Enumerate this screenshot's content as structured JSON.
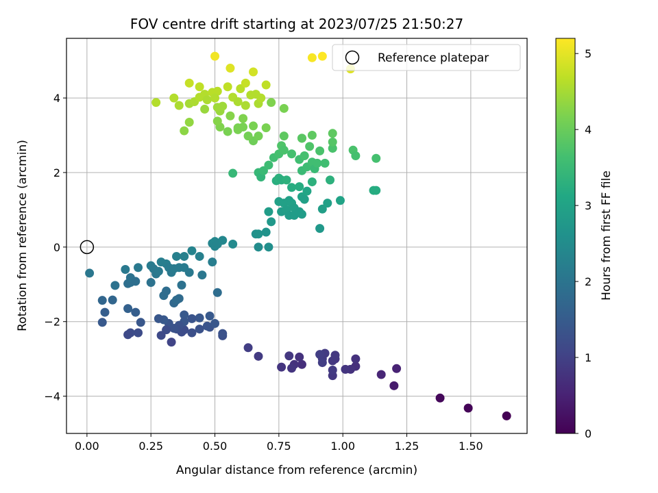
{
  "chart_data": {
    "type": "scatter",
    "title": "FOV centre drift starting at 2023/07/25 21:50:27",
    "xlabel": "Angular distance from reference (arcmin)",
    "ylabel": "Rotation from reference (arcmin)",
    "xlim": [
      -0.08,
      1.72
    ],
    "ylim": [
      -5.0,
      5.6
    ],
    "x_ticks": [
      0.0,
      0.25,
      0.5,
      0.75,
      1.0,
      1.25,
      1.5
    ],
    "x_tick_labels": [
      "0.00",
      "0.25",
      "0.50",
      "0.75",
      "1.00",
      "1.25",
      "1.50"
    ],
    "y_ticks": [
      -4,
      -2,
      0,
      2,
      4
    ],
    "y_tick_labels": [
      "−4",
      "−2",
      "0",
      "2",
      "4"
    ],
    "grid": true,
    "legend": {
      "placement": "upper-right",
      "label": "Reference platepar"
    },
    "reference_point": {
      "x": 0.0,
      "y": 0.0
    },
    "colorbar": {
      "label": "Hours from first FF file",
      "min": 0,
      "max": 5.2,
      "ticks": [
        0,
        1,
        2,
        3,
        4,
        5
      ],
      "tick_labels": [
        "0",
        "1",
        "2",
        "3",
        "4",
        "5"
      ],
      "colormap": "viridis"
    },
    "points": [
      {
        "x": 1.64,
        "y": -4.53,
        "t": 0.0
      },
      {
        "x": 1.49,
        "y": -4.32,
        "t": 0.05
      },
      {
        "x": 1.38,
        "y": -4.05,
        "t": 0.1
      },
      {
        "x": 1.2,
        "y": -3.72,
        "t": 0.4
      },
      {
        "x": 1.21,
        "y": -3.26,
        "t": 0.5
      },
      {
        "x": 1.15,
        "y": -3.42,
        "t": 0.55
      },
      {
        "x": 1.05,
        "y": -3.2,
        "t": 0.7
      },
      {
        "x": 1.05,
        "y": -3.0,
        "t": 0.75
      },
      {
        "x": 1.03,
        "y": -3.28,
        "t": 0.75
      },
      {
        "x": 1.01,
        "y": -3.28,
        "t": 0.8
      },
      {
        "x": 0.97,
        "y": -3.0,
        "t": 0.8
      },
      {
        "x": 0.96,
        "y": -3.45,
        "t": 0.85
      },
      {
        "x": 0.96,
        "y": -3.05,
        "t": 0.85
      },
      {
        "x": 0.97,
        "y": -2.9,
        "t": 0.85
      },
      {
        "x": 0.96,
        "y": -3.3,
        "t": 0.9
      },
      {
        "x": 0.93,
        "y": -2.85,
        "t": 0.9
      },
      {
        "x": 0.92,
        "y": -3.0,
        "t": 0.9
      },
      {
        "x": 0.91,
        "y": -2.88,
        "t": 0.95
      },
      {
        "x": 0.92,
        "y": -3.1,
        "t": 0.95
      },
      {
        "x": 0.84,
        "y": -3.15,
        "t": 0.7
      },
      {
        "x": 0.83,
        "y": -2.95,
        "t": 0.75
      },
      {
        "x": 0.81,
        "y": -3.15,
        "t": 0.75
      },
      {
        "x": 0.8,
        "y": -3.25,
        "t": 0.8
      },
      {
        "x": 0.79,
        "y": -2.92,
        "t": 0.85
      },
      {
        "x": 0.76,
        "y": -3.22,
        "t": 0.8
      },
      {
        "x": 0.67,
        "y": -2.93,
        "t": 0.9
      },
      {
        "x": 0.63,
        "y": -2.7,
        "t": 0.95
      },
      {
        "x": 0.53,
        "y": -2.38,
        "t": 1.25
      },
      {
        "x": 0.53,
        "y": -2.32,
        "t": 1.3
      },
      {
        "x": 0.48,
        "y": -1.85,
        "t": 1.45
      },
      {
        "x": 0.48,
        "y": -2.15,
        "t": 1.3
      },
      {
        "x": 0.47,
        "y": -2.12,
        "t": 1.35
      },
      {
        "x": 0.5,
        "y": -2.05,
        "t": 1.4
      },
      {
        "x": 0.44,
        "y": -2.2,
        "t": 1.3
      },
      {
        "x": 0.44,
        "y": -1.9,
        "t": 1.4
      },
      {
        "x": 0.41,
        "y": -2.3,
        "t": 1.25
      },
      {
        "x": 0.41,
        "y": -1.92,
        "t": 1.35
      },
      {
        "x": 0.38,
        "y": -2.22,
        "t": 1.2
      },
      {
        "x": 0.38,
        "y": -1.82,
        "t": 1.45
      },
      {
        "x": 0.38,
        "y": -2.0,
        "t": 1.4
      },
      {
        "x": 0.37,
        "y": -2.28,
        "t": 1.2
      },
      {
        "x": 0.36,
        "y": -2.1,
        "t": 1.3
      },
      {
        "x": 0.35,
        "y": -2.2,
        "t": 1.25
      },
      {
        "x": 0.34,
        "y": -2.18,
        "t": 1.3
      },
      {
        "x": 0.33,
        "y": -2.55,
        "t": 1.05
      },
      {
        "x": 0.32,
        "y": -2.05,
        "t": 1.35
      },
      {
        "x": 0.31,
        "y": -2.22,
        "t": 1.2
      },
      {
        "x": 0.3,
        "y": -1.95,
        "t": 1.45
      },
      {
        "x": 0.29,
        "y": -2.37,
        "t": 1.15
      },
      {
        "x": 0.28,
        "y": -1.92,
        "t": 1.4
      },
      {
        "x": 0.21,
        "y": -2.02,
        "t": 1.4
      },
      {
        "x": 0.2,
        "y": -2.3,
        "t": 1.2
      },
      {
        "x": 0.19,
        "y": -1.75,
        "t": 1.55
      },
      {
        "x": 0.17,
        "y": -2.3,
        "t": 1.2
      },
      {
        "x": 0.16,
        "y": -2.35,
        "t": 1.15
      },
      {
        "x": 0.16,
        "y": -1.65,
        "t": 1.6
      },
      {
        "x": 0.1,
        "y": -1.42,
        "t": 1.7
      },
      {
        "x": 0.07,
        "y": -1.75,
        "t": 1.55
      },
      {
        "x": 0.06,
        "y": -2.02,
        "t": 1.45
      },
      {
        "x": 0.06,
        "y": -1.43,
        "t": 1.7
      },
      {
        "x": 0.01,
        "y": -0.7,
        "t": 2.05
      },
      {
        "x": 0.11,
        "y": -1.03,
        "t": 1.95
      },
      {
        "x": 0.15,
        "y": -0.6,
        "t": 2.1
      },
      {
        "x": 0.16,
        "y": -0.98,
        "t": 1.9
      },
      {
        "x": 0.17,
        "y": -0.95,
        "t": 1.9
      },
      {
        "x": 0.17,
        "y": -0.82,
        "t": 1.95
      },
      {
        "x": 0.19,
        "y": -0.92,
        "t": 1.9
      },
      {
        "x": 0.2,
        "y": -0.55,
        "t": 2.1
      },
      {
        "x": 0.25,
        "y": -0.95,
        "t": 1.95
      },
      {
        "x": 0.25,
        "y": -0.5,
        "t": 2.15
      },
      {
        "x": 0.26,
        "y": -0.58,
        "t": 2.1
      },
      {
        "x": 0.27,
        "y": -0.72,
        "t": 2.05
      },
      {
        "x": 0.28,
        "y": -0.65,
        "t": 2.1
      },
      {
        "x": 0.29,
        "y": -0.4,
        "t": 2.2
      },
      {
        "x": 0.3,
        "y": -1.3,
        "t": 1.85
      },
      {
        "x": 0.31,
        "y": -0.45,
        "t": 2.2
      },
      {
        "x": 0.31,
        "y": -1.18,
        "t": 1.85
      },
      {
        "x": 0.32,
        "y": -0.55,
        "t": 2.15
      },
      {
        "x": 0.33,
        "y": -0.68,
        "t": 2.1
      },
      {
        "x": 0.34,
        "y": -1.5,
        "t": 1.75
      },
      {
        "x": 0.34,
        "y": -0.58,
        "t": 2.15
      },
      {
        "x": 0.35,
        "y": -0.25,
        "t": 2.25
      },
      {
        "x": 0.35,
        "y": -1.42,
        "t": 1.8
      },
      {
        "x": 0.36,
        "y": -1.38,
        "t": 1.8
      },
      {
        "x": 0.36,
        "y": -0.55,
        "t": 2.15
      },
      {
        "x": 0.37,
        "y": -1.02,
        "t": 1.95
      },
      {
        "x": 0.38,
        "y": -0.25,
        "t": 2.25
      },
      {
        "x": 0.38,
        "y": -0.55,
        "t": 2.15
      },
      {
        "x": 0.4,
        "y": -0.68,
        "t": 2.1
      },
      {
        "x": 0.41,
        "y": -0.1,
        "t": 2.3
      },
      {
        "x": 0.44,
        "y": -0.25,
        "t": 2.25
      },
      {
        "x": 0.45,
        "y": -0.75,
        "t": 2.05
      },
      {
        "x": 0.49,
        "y": -0.4,
        "t": 2.2
      },
      {
        "x": 0.49,
        "y": 0.1,
        "t": 2.35
      },
      {
        "x": 0.5,
        "y": 0.15,
        "t": 2.4
      },
      {
        "x": 0.5,
        "y": 0.02,
        "t": 2.35
      },
      {
        "x": 0.51,
        "y": -1.22,
        "t": 1.85
      },
      {
        "x": 0.51,
        "y": 0.08,
        "t": 2.35
      },
      {
        "x": 0.53,
        "y": 0.18,
        "t": 2.4
      },
      {
        "x": 0.57,
        "y": 0.08,
        "t": 2.45
      },
      {
        "x": 0.66,
        "y": 0.35,
        "t": 2.6
      },
      {
        "x": 0.67,
        "y": 0.35,
        "t": 2.65
      },
      {
        "x": 0.67,
        "y": 0.0,
        "t": 2.5
      },
      {
        "x": 0.7,
        "y": 0.4,
        "t": 2.65
      },
      {
        "x": 0.71,
        "y": 0.0,
        "t": 2.55
      },
      {
        "x": 0.71,
        "y": 0.95,
        "t": 2.85
      },
      {
        "x": 0.72,
        "y": 0.68,
        "t": 2.75
      },
      {
        "x": 0.75,
        "y": 1.22,
        "t": 2.95
      },
      {
        "x": 0.76,
        "y": 0.95,
        "t": 2.85
      },
      {
        "x": 0.77,
        "y": 1.18,
        "t": 2.95
      },
      {
        "x": 0.78,
        "y": 1.0,
        "t": 2.9
      },
      {
        "x": 0.79,
        "y": 0.85,
        "t": 2.85
      },
      {
        "x": 0.79,
        "y": 1.25,
        "t": 2.95
      },
      {
        "x": 0.8,
        "y": 1.18,
        "t": 2.95
      },
      {
        "x": 0.81,
        "y": 1.05,
        "t": 2.9
      },
      {
        "x": 0.81,
        "y": 0.85,
        "t": 2.85
      },
      {
        "x": 0.83,
        "y": 0.95,
        "t": 2.85
      },
      {
        "x": 0.84,
        "y": 0.88,
        "t": 2.85
      },
      {
        "x": 0.84,
        "y": 1.35,
        "t": 3.0
      },
      {
        "x": 0.85,
        "y": 1.28,
        "t": 2.95
      },
      {
        "x": 0.86,
        "y": 1.5,
        "t": 3.05
      },
      {
        "x": 0.91,
        "y": 0.5,
        "t": 2.75
      },
      {
        "x": 0.92,
        "y": 1.02,
        "t": 2.9
      },
      {
        "x": 0.94,
        "y": 1.18,
        "t": 2.95
      },
      {
        "x": 0.99,
        "y": 1.25,
        "t": 3.0
      },
      {
        "x": 0.74,
        "y": 1.78,
        "t": 3.25
      },
      {
        "x": 0.75,
        "y": 1.85,
        "t": 3.3
      },
      {
        "x": 0.76,
        "y": 1.8,
        "t": 3.25
      },
      {
        "x": 0.78,
        "y": 1.8,
        "t": 3.3
      },
      {
        "x": 0.8,
        "y": 1.6,
        "t": 3.2
      },
      {
        "x": 0.83,
        "y": 1.62,
        "t": 3.2
      },
      {
        "x": 0.88,
        "y": 1.75,
        "t": 3.3
      },
      {
        "x": 0.95,
        "y": 1.8,
        "t": 3.3
      },
      {
        "x": 1.13,
        "y": 1.52,
        "t": 3.2
      },
      {
        "x": 1.12,
        "y": 1.52,
        "t": 3.2
      },
      {
        "x": 0.57,
        "y": 1.98,
        "t": 3.45
      },
      {
        "x": 0.67,
        "y": 2.0,
        "t": 3.45
      },
      {
        "x": 0.68,
        "y": 1.88,
        "t": 3.4
      },
      {
        "x": 0.69,
        "y": 2.05,
        "t": 3.5
      },
      {
        "x": 0.71,
        "y": 2.2,
        "t": 3.55
      },
      {
        "x": 0.73,
        "y": 2.4,
        "t": 3.6
      },
      {
        "x": 0.75,
        "y": 2.5,
        "t": 3.65
      },
      {
        "x": 0.76,
        "y": 2.72,
        "t": 3.75
      },
      {
        "x": 0.77,
        "y": 2.6,
        "t": 3.7
      },
      {
        "x": 0.8,
        "y": 2.5,
        "t": 3.65
      },
      {
        "x": 0.83,
        "y": 2.35,
        "t": 3.6
      },
      {
        "x": 0.84,
        "y": 2.05,
        "t": 3.5
      },
      {
        "x": 0.85,
        "y": 2.45,
        "t": 3.65
      },
      {
        "x": 0.86,
        "y": 2.15,
        "t": 3.55
      },
      {
        "x": 0.87,
        "y": 2.7,
        "t": 3.75
      },
      {
        "x": 0.88,
        "y": 2.28,
        "t": 3.6
      },
      {
        "x": 0.89,
        "y": 2.1,
        "t": 3.5
      },
      {
        "x": 0.9,
        "y": 2.25,
        "t": 3.6
      },
      {
        "x": 0.91,
        "y": 2.58,
        "t": 3.7
      },
      {
        "x": 0.93,
        "y": 2.25,
        "t": 3.6
      },
      {
        "x": 0.96,
        "y": 2.65,
        "t": 3.7
      },
      {
        "x": 0.96,
        "y": 2.82,
        "t": 3.8
      },
      {
        "x": 1.04,
        "y": 2.6,
        "t": 3.7
      },
      {
        "x": 1.05,
        "y": 2.45,
        "t": 3.65
      },
      {
        "x": 1.13,
        "y": 2.38,
        "t": 3.65
      },
      {
        "x": 0.77,
        "y": 2.98,
        "t": 3.9
      },
      {
        "x": 0.84,
        "y": 2.92,
        "t": 3.85
      },
      {
        "x": 0.88,
        "y": 3.0,
        "t": 3.9
      },
      {
        "x": 0.96,
        "y": 3.05,
        "t": 3.9
      },
      {
        "x": 0.84,
        "y": 2.92,
        "t": 3.85
      },
      {
        "x": 0.72,
        "y": 3.88,
        "t": 4.2
      },
      {
        "x": 0.77,
        "y": 3.72,
        "t": 4.15
      },
      {
        "x": 0.65,
        "y": 2.85,
        "t": 4.05
      },
      {
        "x": 0.67,
        "y": 2.98,
        "t": 4.1
      },
      {
        "x": 0.63,
        "y": 2.98,
        "t": 4.1
      },
      {
        "x": 0.65,
        "y": 3.25,
        "t": 4.15
      },
      {
        "x": 0.7,
        "y": 3.2,
        "t": 4.15
      },
      {
        "x": 0.59,
        "y": 3.2,
        "t": 4.15
      },
      {
        "x": 0.59,
        "y": 3.15,
        "t": 4.15
      },
      {
        "x": 0.61,
        "y": 3.45,
        "t": 4.2
      },
      {
        "x": 0.61,
        "y": 3.22,
        "t": 4.15
      },
      {
        "x": 0.55,
        "y": 3.1,
        "t": 4.15
      },
      {
        "x": 0.56,
        "y": 3.52,
        "t": 4.25
      },
      {
        "x": 0.52,
        "y": 3.22,
        "t": 4.2
      },
      {
        "x": 0.51,
        "y": 3.38,
        "t": 4.25
      },
      {
        "x": 0.38,
        "y": 3.12,
        "t": 4.3
      },
      {
        "x": 0.4,
        "y": 3.35,
        "t": 4.35
      },
      {
        "x": 0.46,
        "y": 3.7,
        "t": 4.4
      },
      {
        "x": 0.52,
        "y": 3.65,
        "t": 4.4
      },
      {
        "x": 0.51,
        "y": 3.75,
        "t": 4.45
      },
      {
        "x": 0.53,
        "y": 3.78,
        "t": 4.45
      },
      {
        "x": 0.4,
        "y": 3.85,
        "t": 4.5
      },
      {
        "x": 0.36,
        "y": 3.8,
        "t": 4.55
      },
      {
        "x": 0.34,
        "y": 4.0,
        "t": 4.6
      },
      {
        "x": 0.27,
        "y": 3.88,
        "t": 4.6
      },
      {
        "x": 0.42,
        "y": 3.9,
        "t": 4.55
      },
      {
        "x": 0.44,
        "y": 4.02,
        "t": 4.6
      },
      {
        "x": 0.46,
        "y": 4.1,
        "t": 4.6
      },
      {
        "x": 0.47,
        "y": 3.95,
        "t": 4.55
      },
      {
        "x": 0.49,
        "y": 4.15,
        "t": 4.65
      },
      {
        "x": 0.51,
        "y": 4.18,
        "t": 4.65
      },
      {
        "x": 0.5,
        "y": 4.0,
        "t": 4.6
      },
      {
        "x": 0.44,
        "y": 4.3,
        "t": 4.7
      },
      {
        "x": 0.4,
        "y": 4.4,
        "t": 4.75
      },
      {
        "x": 0.55,
        "y": 4.3,
        "t": 4.7
      },
      {
        "x": 0.57,
        "y": 4.02,
        "t": 4.6
      },
      {
        "x": 0.59,
        "y": 3.9,
        "t": 4.55
      },
      {
        "x": 0.6,
        "y": 4.25,
        "t": 4.65
      },
      {
        "x": 0.62,
        "y": 3.8,
        "t": 4.55
      },
      {
        "x": 0.64,
        "y": 4.08,
        "t": 4.6
      },
      {
        "x": 0.66,
        "y": 4.1,
        "t": 4.6
      },
      {
        "x": 0.67,
        "y": 3.85,
        "t": 4.55
      },
      {
        "x": 0.68,
        "y": 4.0,
        "t": 4.6
      },
      {
        "x": 0.7,
        "y": 4.35,
        "t": 4.7
      },
      {
        "x": 0.62,
        "y": 4.4,
        "t": 4.75
      },
      {
        "x": 0.65,
        "y": 4.7,
        "t": 4.85
      },
      {
        "x": 0.56,
        "y": 4.8,
        "t": 4.95
      },
      {
        "x": 0.5,
        "y": 5.12,
        "t": 5.1
      },
      {
        "x": 0.88,
        "y": 5.08,
        "t": 5.15
      },
      {
        "x": 0.92,
        "y": 5.12,
        "t": 5.2
      },
      {
        "x": 1.03,
        "y": 4.78,
        "t": 4.95
      }
    ]
  }
}
